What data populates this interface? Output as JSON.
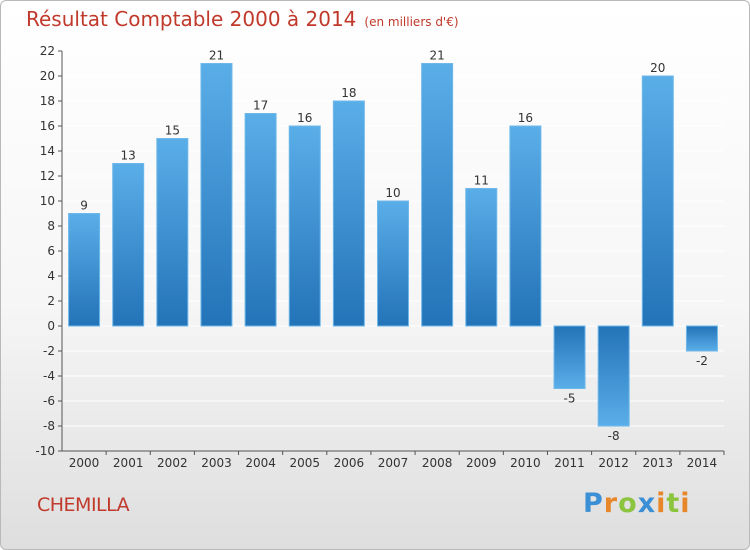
{
  "title": "Résultat Comptable 2000 à 2014",
  "subtitle": "(en milliers d'€)",
  "city": "CHEMILLA",
  "logo": {
    "text": "Proxiti",
    "letters": [
      {
        "ch": "P",
        "color": "#3b8fd4"
      },
      {
        "ch": "r",
        "color": "#e8862a"
      },
      {
        "ch": "o",
        "color": "#8cc43f"
      },
      {
        "ch": "x",
        "color": "#3b8fd4"
      },
      {
        "ch": "i",
        "color": "#e8862a"
      },
      {
        "ch": "t",
        "color": "#8cc43f"
      },
      {
        "ch": "i",
        "color": "#e8862a"
      }
    ]
  },
  "colors": {
    "bar_light": "#5aaee8",
    "bar_dark": "#2373b8",
    "title": "#c0392b",
    "grid": "#ffffff"
  },
  "chart_data": {
    "type": "bar",
    "categories": [
      "2000",
      "2001",
      "2002",
      "2003",
      "2004",
      "2005",
      "2006",
      "2007",
      "2008",
      "2009",
      "2010",
      "2011",
      "2012",
      "2013",
      "2014"
    ],
    "values": [
      9,
      13,
      15,
      21,
      17,
      16,
      18,
      10,
      21,
      11,
      16,
      -5,
      -8,
      20,
      -2
    ],
    "ylim": [
      -10,
      22
    ],
    "yticks": [
      -10,
      -8,
      -6,
      -4,
      -2,
      0,
      2,
      4,
      6,
      8,
      10,
      12,
      14,
      16,
      18,
      20,
      22
    ],
    "grid": true
  }
}
